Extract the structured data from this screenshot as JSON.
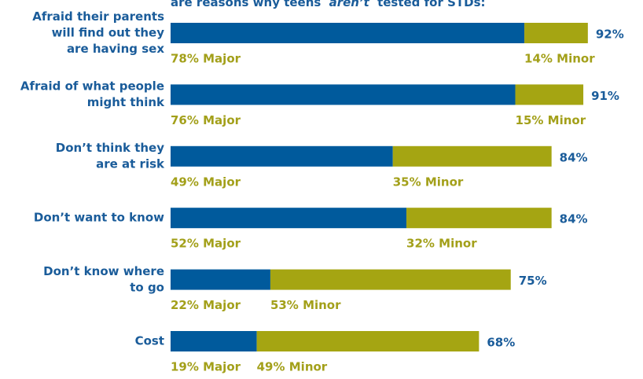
{
  "chart_data": {
    "type": "stacked-bar-horizontal",
    "title": [
      "are reasons why teens",
      "aren’t",
      "tested for STDs:"
    ],
    "categories": [
      [
        "Afraid their parents",
        "will find out they",
        "are having sex"
      ],
      [
        "Afraid of what people",
        "might think"
      ],
      [
        "Don’t think they",
        "are at risk"
      ],
      [
        "Don’t want to know"
      ],
      [
        "Don’t know where",
        "to go"
      ],
      [
        "Cost"
      ]
    ],
    "series": [
      {
        "name": "Major",
        "color": "#005a9c",
        "values": [
          78,
          76,
          49,
          52,
          22,
          19
        ],
        "value_labels": [
          "78% Major",
          "76% Major",
          "49% Major",
          "52% Major",
          "22% Major",
          "19% Major"
        ]
      },
      {
        "name": "Minor",
        "color": "#a5a512",
        "values": [
          14,
          15,
          35,
          32,
          53,
          49
        ],
        "value_labels": [
          "14% Minor",
          "15% Minor",
          "35% Minor",
          "32% Minor",
          "53% Minor",
          "49% Minor"
        ]
      }
    ],
    "totals": [
      92,
      91,
      84,
      84,
      75,
      68
    ],
    "total_labels": [
      "92%",
      "91%",
      "84%",
      "84%",
      "75%",
      "68%"
    ],
    "xlim": [
      0,
      100
    ]
  }
}
